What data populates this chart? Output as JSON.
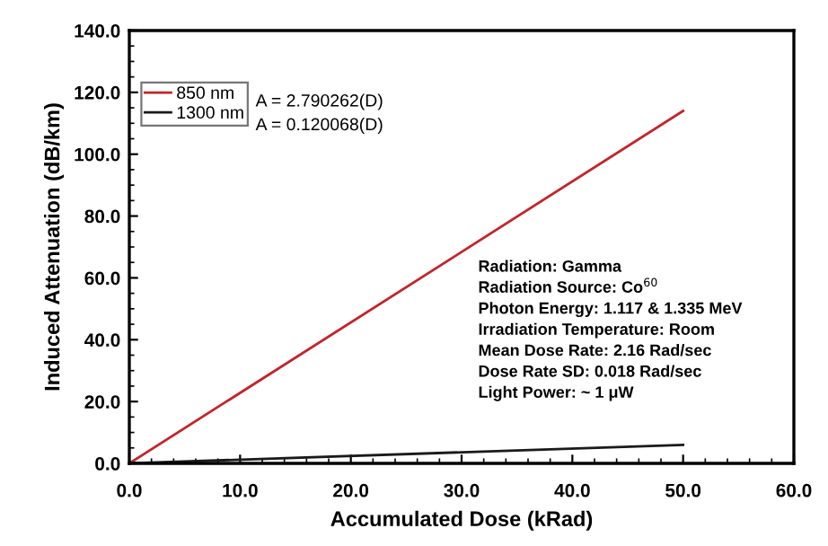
{
  "chart_data": {
    "type": "line",
    "xlabel": "Accumulated Dose (kRad)",
    "ylabel": "Induced Attenuation (dB/km)",
    "x": [
      0,
      50
    ],
    "series": [
      {
        "name": "850 nm",
        "color": "#c0262d",
        "values": [
          0,
          114
        ]
      },
      {
        "name": "1300 nm",
        "color": "#1a1a1a",
        "values": [
          0,
          6
        ]
      }
    ],
    "xlim": [
      0,
      60
    ],
    "xticks": [
      {
        "value": 0,
        "label": "0.0"
      },
      {
        "value": 10,
        "label": "10.0"
      },
      {
        "value": 20,
        "label": "20.0"
      },
      {
        "value": 30,
        "label": "30.0"
      },
      {
        "value": 40,
        "label": "40.0"
      },
      {
        "value": 50,
        "label": "50.0"
      },
      {
        "value": 60,
        "label": "60.0"
      }
    ],
    "ylim": [
      0,
      140
    ],
    "yticks": [
      {
        "value": 0,
        "label": "0.0"
      },
      {
        "value": 20,
        "label": "20.0"
      },
      {
        "value": 40,
        "label": "40.0"
      },
      {
        "value": 60,
        "label": "60.0"
      },
      {
        "value": 80,
        "label": "80.0"
      },
      {
        "value": 100,
        "label": "100.0"
      },
      {
        "value": 120,
        "label": "120.0"
      },
      {
        "value": 140,
        "label": "140.0"
      }
    ],
    "grid": false,
    "legend": "top left",
    "marker": "none",
    "line_style": "solid",
    "annotations": [
      "A = 2.790262(D)",
      "A = 0.120068(D)",
      "Radiation: Gamma\nRadiation Source: Co$^{60}$\nPhoton Energy: 1.117 & 1.335 MeV\nIrradiation Temperature: Room\nMean Dose Rate: 2.16 Rad/sec\nDose Rate SD: 0.018 Rad/sec\nLight Power: ~ 1 μW"
    ]
  }
}
